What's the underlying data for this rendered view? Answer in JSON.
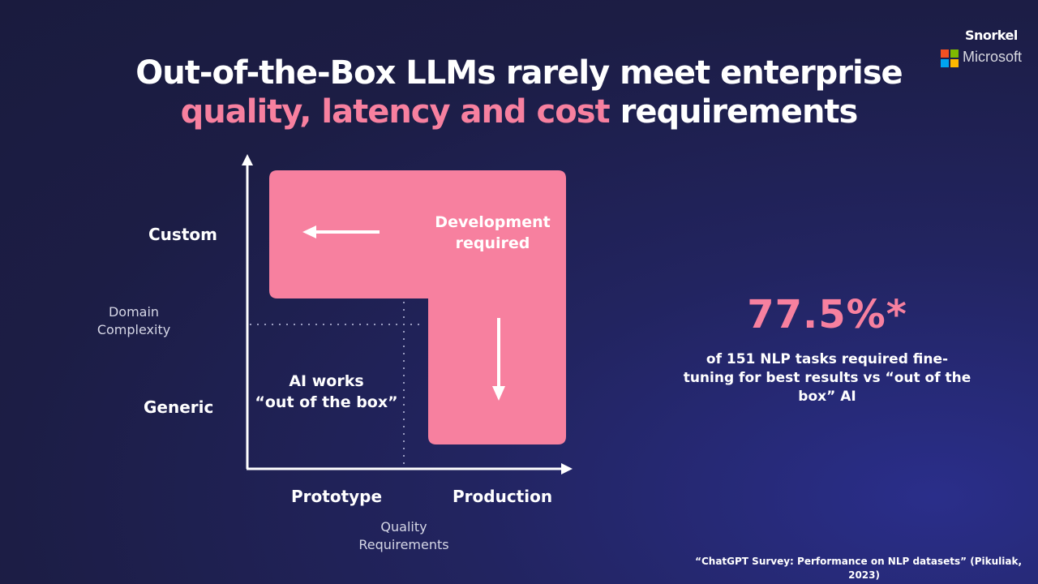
{
  "title": {
    "line1": "Out-of-the-Box LLMs rarely meet enterprise",
    "line2_highlight": "quality, latency and cost",
    "line2_rest": " requirements"
  },
  "brands": {
    "snorkel": "Snorkel",
    "microsoft": "Microsoft"
  },
  "diagram": {
    "y_axis": {
      "title": "Domain Complexity",
      "title_lines": [
        "Domain",
        "Complexity"
      ],
      "top_label": "Custom",
      "bottom_label": "Generic"
    },
    "x_axis": {
      "title": "Quality Requirements",
      "title_lines": [
        "Quality",
        "Requirements"
      ],
      "left_label": "Prototype",
      "right_label": "Production"
    },
    "dev_region_label_lines": [
      "Development",
      "required"
    ],
    "ootb_region_label_lines": [
      "AI works",
      "“out of the box”"
    ]
  },
  "stat": {
    "value": "77.5%*",
    "description": "of 151 NLP tasks required fine-tuning for best results vs “out of the box” AI",
    "description_lines": [
      "of 151 NLP tasks required fine-",
      "tuning for best results vs “out of the",
      "box” AI"
    ]
  },
  "citation": {
    "line1": "“ChatGPT Survey: Performance on NLP datasets” (Pikuliak,",
    "line2": "2023)"
  },
  "colors": {
    "accent_pink": "#f7809f",
    "background": "#1c1d45",
    "text": "#ffffff"
  }
}
